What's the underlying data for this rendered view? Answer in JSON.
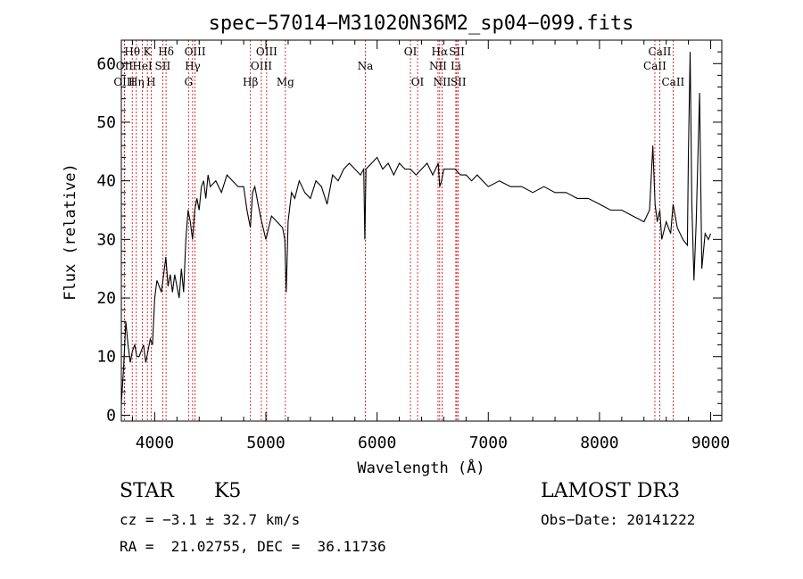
{
  "chart_data": {
    "type": "line",
    "title": "spec−57014−M31020N36M2_sp04−099.fits",
    "xlabel": "Wavelength (Å)",
    "ylabel": "Flux (relative)",
    "xlim": [
      3700,
      9100
    ],
    "ylim": [
      -1,
      64
    ],
    "xticks": [
      4000,
      5000,
      6000,
      7000,
      8000,
      9000
    ],
    "yticks": [
      0,
      10,
      20,
      30,
      40,
      50,
      60
    ],
    "line_color": "#000000",
    "marker_color": "#cc0000",
    "series": [
      {
        "x": [
          3700,
          3720,
          3740,
          3760,
          3780,
          3800,
          3820,
          3840,
          3860,
          3880,
          3900,
          3920,
          3940,
          3960,
          3980,
          4000,
          4020,
          4040,
          4060,
          4080,
          4100,
          4120,
          4140,
          4160,
          4180,
          4200,
          4220,
          4240,
          4260,
          4280,
          4300,
          4320,
          4340,
          4360,
          4380,
          4400,
          4420,
          4440,
          4460,
          4480,
          4500,
          4550,
          4600,
          4650,
          4700,
          4750,
          4800,
          4830,
          4860,
          4880,
          4900,
          4950,
          5000,
          5050,
          5100,
          5150,
          5170,
          5183,
          5200,
          5230,
          5260,
          5300,
          5350,
          5400,
          5450,
          5500,
          5550,
          5600,
          5650,
          5700,
          5750,
          5800,
          5850,
          5880,
          5890,
          5900,
          5950,
          6000,
          6050,
          6100,
          6150,
          6200,
          6250,
          6300,
          6350,
          6400,
          6450,
          6500,
          6550,
          6563,
          6580,
          6600,
          6650,
          6700,
          6750,
          6800,
          6850,
          6900,
          6950,
          7000,
          7100,
          7200,
          7300,
          7400,
          7500,
          7600,
          7700,
          7800,
          7900,
          8000,
          8100,
          8200,
          8300,
          8400,
          8450,
          8480,
          8500,
          8520,
          8542,
          8560,
          8600,
          8640,
          8662,
          8700,
          8750,
          8790,
          8800,
          8815,
          8830,
          8850,
          8870,
          8900,
          8920,
          8950,
          8980,
          9000
        ],
        "y": [
          2,
          8,
          16,
          12,
          9,
          11,
          12,
          10,
          10,
          11,
          12,
          9,
          11,
          13,
          12,
          20,
          23,
          22,
          21,
          24,
          27,
          22,
          24,
          21,
          24,
          22,
          20,
          25,
          21,
          30,
          35,
          33,
          30,
          35,
          37,
          35,
          39,
          40,
          37,
          41,
          39,
          40,
          38,
          41,
          40,
          39,
          39,
          35,
          32,
          38,
          39,
          34,
          30,
          34,
          33,
          32,
          30,
          21,
          33,
          38,
          37,
          40,
          38,
          37,
          40,
          39,
          36,
          41,
          40,
          42,
          43,
          42,
          41,
          42,
          30,
          42,
          43,
          44,
          42,
          43,
          41,
          43,
          42,
          42,
          41,
          42,
          43,
          41,
          43,
          39,
          40,
          42,
          42,
          42,
          41,
          41,
          40,
          41,
          40,
          39,
          40,
          39,
          39,
          38,
          39,
          38,
          38,
          37,
          37,
          36,
          35,
          35,
          34,
          33,
          35,
          46,
          36,
          33,
          35,
          30,
          33,
          31,
          36,
          32,
          30,
          29,
          45,
          62,
          36,
          23,
          33,
          55,
          25,
          31,
          30,
          31
        ]
      }
    ],
    "spectral_lines": [
      {
        "label": "Hθ",
        "wavelength": 3798,
        "row": 1
      },
      {
        "label": "OII",
        "wavelength": 3727,
        "row": 2
      },
      {
        "label": "OIII",
        "wavelength": 3727,
        "row": 3
      },
      {
        "label": "Hη",
        "wavelength": 3835,
        "row": 3
      },
      {
        "label": "HeI",
        "wavelength": 3889,
        "row": 2
      },
      {
        "label": "K",
        "wavelength": 3934,
        "row": 1
      },
      {
        "label": "H",
        "wavelength": 3968,
        "row": 3
      },
      {
        "label": "SII",
        "wavelength": 4072,
        "row": 2
      },
      {
        "label": "Hδ",
        "wavelength": 4102,
        "row": 1
      },
      {
        "label": "OIII",
        "wavelength": 4363,
        "row": 1
      },
      {
        "label": "Hγ",
        "wavelength": 4341,
        "row": 2
      },
      {
        "label": "G",
        "wavelength": 4304,
        "row": 3
      },
      {
        "label": "Hβ",
        "wavelength": 4861,
        "row": 3
      },
      {
        "label": "OIII",
        "wavelength": 5007,
        "row": 1
      },
      {
        "label": "OIII",
        "wavelength": 4959,
        "row": 2
      },
      {
        "label": "Mg",
        "wavelength": 5175,
        "row": 3
      },
      {
        "label": "Na",
        "wavelength": 5894,
        "row": 2
      },
      {
        "label": "OI",
        "wavelength": 6300,
        "row": 1
      },
      {
        "label": "OI",
        "wavelength": 6364,
        "row": 3
      },
      {
        "label": "Hα",
        "wavelength": 6563,
        "row": 1
      },
      {
        "label": "NII",
        "wavelength": 6548,
        "row": 2
      },
      {
        "label": "NII",
        "wavelength": 6584,
        "row": 3
      },
      {
        "label": "SII",
        "wavelength": 6717,
        "row": 1
      },
      {
        "label": "Li",
        "wavelength": 6708,
        "row": 2
      },
      {
        "label": "SII",
        "wavelength": 6731,
        "row": 3
      },
      {
        "label": "CaII",
        "wavelength": 8542,
        "row": 1
      },
      {
        "label": "CaII",
        "wavelength": 8498,
        "row": 2
      },
      {
        "label": "CaII",
        "wavelength": 8662,
        "row": 3
      }
    ]
  },
  "info": {
    "class_label": "STAR",
    "subclass": "K5",
    "survey": "LAMOST DR3",
    "velocity": "cz = −3.1 ± 32.7 km/s",
    "obs_date": "Obs−Date: 20141222",
    "coords": "RA =  21.02755, DEC =  36.11736"
  }
}
